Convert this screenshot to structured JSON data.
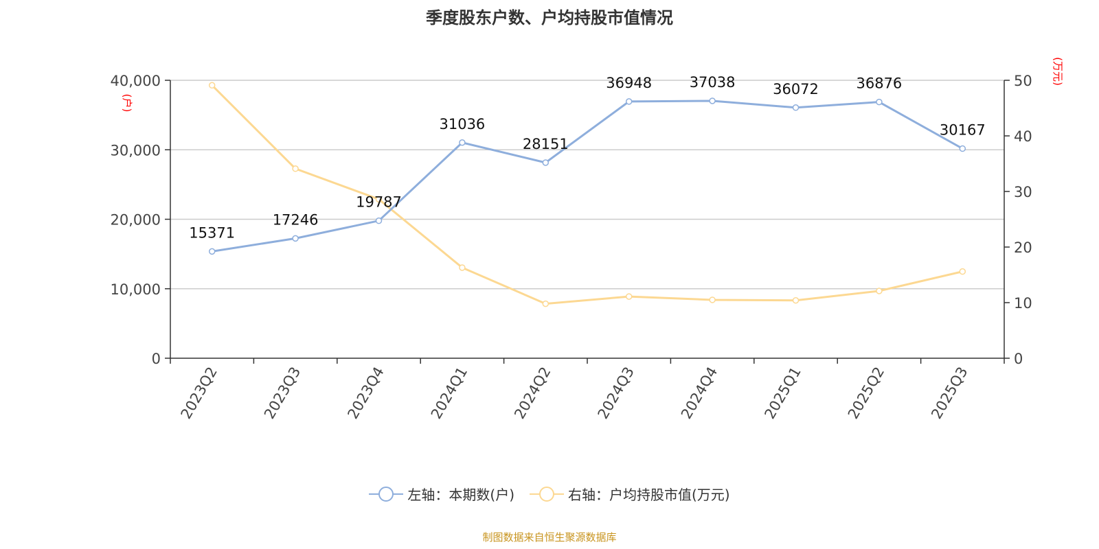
{
  "chart_data": {
    "type": "line",
    "title": "季度股东户数、户均持股市值情况",
    "categories": [
      "2023Q2",
      "2023Q3",
      "2023Q4",
      "2024Q1",
      "2024Q2",
      "2024Q3",
      "2024Q4",
      "2025Q1",
      "2025Q2",
      "2025Q3"
    ],
    "series": [
      {
        "name": "左轴：本期数(户)",
        "axis": "left",
        "color": "#8eaedc",
        "values": [
          15371,
          17246,
          19787,
          31036,
          28151,
          36948,
          37038,
          36072,
          36876,
          30167
        ],
        "labels": true
      },
      {
        "name": "右轴：户均持股市值(万元)",
        "axis": "right",
        "color": "#fcd892",
        "values": [
          49.1,
          34.1,
          28.6,
          16.3,
          9.8,
          11.1,
          10.5,
          10.4,
          12.1,
          15.6
        ],
        "labels": false
      }
    ],
    "left_axis": {
      "label": "(户)",
      "ylim": [
        0,
        40000
      ],
      "ticks": [
        "0",
        "10,000",
        "20,000",
        "30,000",
        "40,000"
      ]
    },
    "right_axis": {
      "label": "(万元)",
      "ylim": [
        0,
        50
      ],
      "ticks": [
        "0",
        "10",
        "20",
        "30",
        "40",
        "50"
      ]
    },
    "grid": true,
    "legend_position": "bottom"
  },
  "source": "制图数据来自恒生聚源数据库"
}
